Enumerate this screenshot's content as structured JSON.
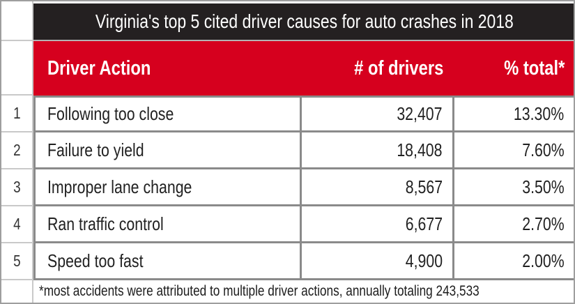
{
  "table": {
    "title": "Virginia's top 5 cited driver causes for auto crashes in 2018",
    "headers": {
      "action": "Driver Action",
      "drivers": "# of drivers",
      "pct": "% total*"
    },
    "rows": [
      {
        "rank": "1",
        "action": "Following too close",
        "drivers": "32,407",
        "pct": "13.30%"
      },
      {
        "rank": "2",
        "action": "Failure to yield",
        "drivers": "18,408",
        "pct": "7.60%"
      },
      {
        "rank": "3",
        "action": "Improper lane change",
        "drivers": "8,567",
        "pct": "3.50%"
      },
      {
        "rank": "4",
        "action": "Ran traffic control",
        "drivers": "6,677",
        "pct": "2.70%"
      },
      {
        "rank": "5",
        "action": "Speed too fast",
        "drivers": "4,900",
        "pct": "2.00%"
      }
    ],
    "footnote": "*most accidents were attributed to multiple driver actions, annually totaling 243,533"
  },
  "colors": {
    "header_bg": "#242021",
    "accent_red": "#d6001e",
    "border_dark": "#8a8a8a",
    "border_light": "#c9c9c9",
    "frame_border": "#9e9e9e",
    "text_dark": "#212121"
  },
  "chart_data": {
    "type": "table",
    "title": "Virginia's top 5 cited driver causes for auto crashes in 2018",
    "columns": [
      "Driver Action",
      "# of drivers",
      "% total*"
    ],
    "rows": [
      [
        "Following too close",
        32407,
        13.3
      ],
      [
        "Failure to yield",
        18408,
        7.6
      ],
      [
        "Improper lane change",
        8567,
        3.5
      ],
      [
        "Ran traffic control",
        6677,
        2.7
      ],
      [
        "Speed too fast",
        4900,
        2.0
      ]
    ],
    "footnote": "*most accidents were attributed to multiple driver actions, annually totaling 243,533",
    "annual_total_cited_actions": 243533,
    "layout": "ranked table with black title bar, red header row, numbered row gutter"
  }
}
